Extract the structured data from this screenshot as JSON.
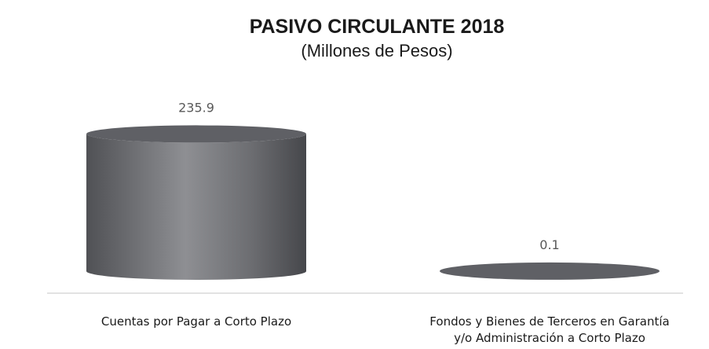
{
  "chart_data": {
    "type": "bar",
    "shape": "cylinder",
    "title": "PASIVO CIRCULANTE 2018",
    "subtitle": "(Millones de Pesos)",
    "categories": [
      [
        "Cuentas por Pagar a Corto Plazo"
      ],
      [
        "Fondos y Bienes de Terceros en Garantía",
        "y/o Administración a Corto Plazo"
      ]
    ],
    "values": [
      235.9,
      0.1
    ],
    "value_labels": [
      "235.9",
      "0.1"
    ],
    "ylim": [
      0,
      250
    ],
    "grid": false,
    "legend": "none",
    "colors": {
      "bar_dark": "#4a4b4f",
      "bar_light": "#8f9094",
      "top_face": "#5f6065",
      "baseline": "#d9d9d9"
    }
  }
}
